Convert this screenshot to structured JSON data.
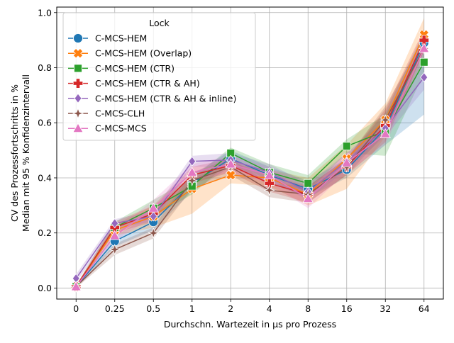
{
  "chart_data": {
    "type": "line",
    "xlabel": "Durchschn. Wartezeit in µs pro Prozess",
    "ylabel_lines": [
      "CV des Prozessfortschritts in %",
      "Median mit 95 % Konfidenzintervall"
    ],
    "categories": [
      "0",
      "0.25",
      "0.5",
      "1",
      "2",
      "4",
      "8",
      "16",
      "32",
      "64"
    ],
    "ylim": [
      -0.04,
      1.02
    ],
    "yticks": [
      0.0,
      0.2,
      0.4,
      0.6,
      0.8,
      1.0
    ],
    "ytick_labels": [
      "0.0",
      "0.2",
      "0.4",
      "0.6",
      "0.8",
      "1.0"
    ],
    "grid": true,
    "legend": {
      "title": "Lock",
      "placement": "top-left"
    },
    "series": [
      {
        "name": "C-MCS-HEM",
        "color": "#1f77b4",
        "marker": "circle",
        "values": [
          0.005,
          0.17,
          0.24,
          0.38,
          0.47,
          0.41,
          0.36,
          0.43,
          0.58,
          0.89
        ],
        "ci_low": [
          0.0,
          0.15,
          0.21,
          0.35,
          0.44,
          0.38,
          0.33,
          0.4,
          0.52,
          0.63
        ],
        "ci_high": [
          0.01,
          0.19,
          0.27,
          0.41,
          0.5,
          0.44,
          0.39,
          0.47,
          0.64,
          0.93
        ]
      },
      {
        "name": "C-MCS-HEM (Overlap)",
        "color": "#ff7f0e",
        "marker": "x-filled",
        "values": [
          0.005,
          0.21,
          0.26,
          0.36,
          0.41,
          0.4,
          0.34,
          0.47,
          0.61,
          0.92
        ],
        "ci_low": [
          0.0,
          0.19,
          0.22,
          0.27,
          0.38,
          0.37,
          0.3,
          0.36,
          0.55,
          0.86
        ],
        "ci_high": [
          0.01,
          0.23,
          0.3,
          0.4,
          0.45,
          0.43,
          0.4,
          0.52,
          0.67,
          0.98
        ]
      },
      {
        "name": "C-MCS-HEM (CTR)",
        "color": "#2ca02c",
        "marker": "square",
        "values": [
          0.005,
          0.22,
          0.29,
          0.37,
          0.49,
          0.42,
          0.38,
          0.515,
          0.57,
          0.82
        ],
        "ci_low": [
          0.0,
          0.2,
          0.26,
          0.34,
          0.46,
          0.39,
          0.35,
          0.49,
          0.48,
          0.78
        ],
        "ci_high": [
          0.01,
          0.24,
          0.32,
          0.4,
          0.51,
          0.45,
          0.41,
          0.54,
          0.63,
          0.86
        ]
      },
      {
        "name": "C-MCS-HEM (CTR & AH)",
        "color": "#d62728",
        "marker": "plus",
        "values": [
          0.005,
          0.22,
          0.27,
          0.41,
          0.445,
          0.38,
          0.34,
          0.44,
          0.59,
          0.9
        ],
        "ci_low": [
          0.0,
          0.2,
          0.24,
          0.38,
          0.42,
          0.35,
          0.31,
          0.41,
          0.53,
          0.86
        ],
        "ci_high": [
          0.01,
          0.24,
          0.3,
          0.44,
          0.47,
          0.41,
          0.37,
          0.47,
          0.65,
          0.94
        ]
      },
      {
        "name": "C-MCS-HEM (CTR & AH & inline)",
        "color": "#9467bd",
        "marker": "diamond",
        "values": [
          0.035,
          0.235,
          0.26,
          0.46,
          0.465,
          0.42,
          0.35,
          0.46,
          0.58,
          0.765
        ],
        "ci_low": [
          0.02,
          0.22,
          0.24,
          0.44,
          0.44,
          0.39,
          0.32,
          0.43,
          0.55,
          0.72
        ],
        "ci_high": [
          0.05,
          0.25,
          0.28,
          0.48,
          0.49,
          0.45,
          0.38,
          0.49,
          0.61,
          0.81
        ]
      },
      {
        "name": "C-MCS-CLH",
        "color": "#8c564b",
        "marker": "star",
        "values": [
          0.005,
          0.14,
          0.2,
          0.39,
          0.44,
          0.355,
          0.34,
          0.44,
          0.61,
          0.87
        ],
        "ci_low": [
          0.0,
          0.12,
          0.18,
          0.36,
          0.41,
          0.33,
          0.31,
          0.41,
          0.56,
          0.83
        ],
        "ci_high": [
          0.01,
          0.16,
          0.22,
          0.42,
          0.47,
          0.38,
          0.37,
          0.47,
          0.66,
          0.91
        ]
      },
      {
        "name": "C-MCS-MCS",
        "color": "#e377c2",
        "marker": "triangle",
        "values": [
          0.005,
          0.19,
          0.29,
          0.42,
          0.45,
          0.41,
          0.325,
          0.455,
          0.56,
          0.87
        ],
        "ci_low": [
          0.0,
          0.17,
          0.26,
          0.39,
          0.42,
          0.38,
          0.29,
          0.42,
          0.52,
          0.83
        ],
        "ci_high": [
          0.01,
          0.21,
          0.32,
          0.45,
          0.48,
          0.44,
          0.36,
          0.49,
          0.6,
          0.91
        ]
      }
    ]
  }
}
